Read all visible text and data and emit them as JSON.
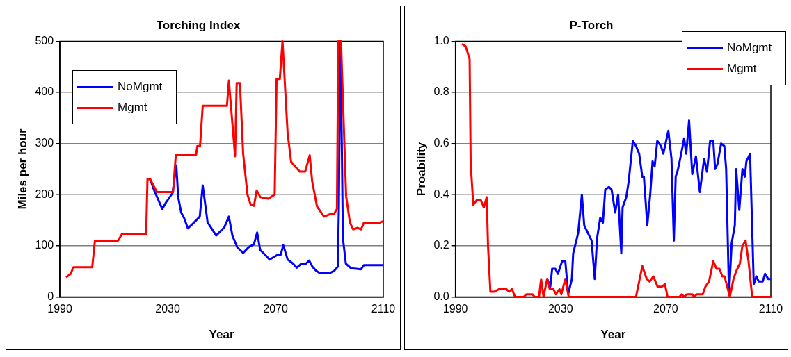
{
  "chart_data": [
    {
      "type": "line",
      "title": "Torching Index",
      "xlabel": "Year",
      "ylabel": "Miles per hour",
      "xlim": [
        1990,
        2110
      ],
      "xticks": [
        1990,
        2030,
        2070,
        2110
      ],
      "ylim": [
        0,
        500
      ],
      "yticks": [
        0,
        100,
        200,
        300,
        400,
        500
      ],
      "grid": "y",
      "legend": "top left",
      "marker": "none",
      "line_style": "solid",
      "series": [
        {
          "name": "NoMgmt",
          "color": "#0000ff",
          "x": [
            2023.5,
            2025,
            2028,
            2029.4,
            2031.8,
            2033.2,
            2033.9,
            2035,
            2036.1,
            2037.5,
            2039.5,
            2041.9,
            2043,
            2044.8,
            2048,
            2051,
            2052.7,
            2054,
            2055.8,
            2058,
            2060,
            2062,
            2063.2,
            2064.3,
            2066.2,
            2067.8,
            2070.7,
            2071.9,
            2072.9,
            2074.5,
            2076.5,
            2077.9,
            2079.6,
            2081.3,
            2082.5,
            2083.7,
            2085.1,
            2086.5,
            2090,
            2091.8,
            2093.1,
            2093.5,
            2094,
            2094.6,
            2095,
            2096.1,
            2098,
            2101.7,
            2102.8,
            2110
          ],
          "values": [
            230,
            208,
            172,
            185,
            203,
            257,
            195,
            165,
            154,
            134,
            144,
            157,
            218,
            146,
            120,
            136,
            157,
            120,
            97,
            86,
            97,
            103,
            126,
            92,
            82,
            73,
            82,
            82,
            101,
            73,
            65,
            57,
            65,
            65,
            71,
            59,
            51,
            46,
            46,
            51,
            59,
            170,
            500,
            300,
            115,
            65,
            56,
            54,
            62,
            62
          ]
        },
        {
          "name": "Mgmt",
          "color": "#ff0000",
          "x": [
            1992.3,
            1994,
            1995,
            2002,
            2003,
            2011.6,
            2013,
            2022,
            2022.5,
            2023.5,
            2026,
            2032,
            2033,
            2040.5,
            2041,
            2042,
            2043,
            2052,
            2052.7,
            2055,
            2055.6,
            2056.8,
            2058,
            2059.6,
            2060.8,
            2062,
            2063,
            2064.4,
            2067.3,
            2069.7,
            2070.4,
            2071.6,
            2072.6,
            2074.5,
            2075.8,
            2078,
            2079,
            2081,
            2082.7,
            2083.6,
            2085.4,
            2088,
            2090.4,
            2091.8,
            2092.8,
            2093.3,
            2094.3,
            2096.2,
            2097.6,
            2098.8,
            2100.5,
            2101.7,
            2102.8,
            2108.6,
            2110
          ],
          "values": [
            38,
            45,
            58,
            58,
            110,
            110,
            123,
            123,
            230,
            230,
            205,
            205,
            277,
            277,
            295,
            295,
            374,
            374,
            423,
            275,
            418,
            418,
            280,
            200,
            180,
            178,
            208,
            195,
            192,
            200,
            426,
            426,
            500,
            320,
            264,
            251,
            245,
            245,
            277,
            226,
            177,
            157,
            162,
            163,
            172,
            500,
            500,
            197,
            146,
            132,
            135,
            132,
            145,
            145,
            148
          ]
        }
      ]
    },
    {
      "type": "line",
      "title": "P-Torch",
      "xlabel": "Year",
      "ylabel": "Proability",
      "xlim": [
        1990,
        2110
      ],
      "xticks": [
        1990,
        2030,
        2070,
        2110
      ],
      "ylim": [
        0,
        1
      ],
      "yticks": [
        {
          "value": 0,
          "label": "0.0"
        },
        {
          "value": 0.2,
          "label": "0.2"
        },
        {
          "value": 0.4,
          "label": "0.4"
        },
        {
          "value": 0.6,
          "label": "0.6"
        },
        {
          "value": 0.8,
          "label": "0.8"
        },
        {
          "value": 1,
          "label": "1.0"
        }
      ],
      "grid": "y",
      "legend": "top right",
      "marker": "none",
      "line_style": "solid",
      "series": [
        {
          "name": "NoMgmt",
          "color": "#0000ff",
          "x": [
            2024.9,
            2026.1,
            2026.8,
            2028,
            2029,
            2030.6,
            2031.8,
            2032.9,
            2034.3,
            2034.8,
            2036.7,
            2038.1,
            2039,
            2040.4,
            2041.8,
            2043,
            2043.9,
            2045.1,
            2046.1,
            2047,
            2048.4,
            2049.4,
            2050.8,
            2051.9,
            2053.1,
            2053.6,
            2055,
            2055.9,
            2057.5,
            2058.7,
            2059.9,
            2061.1,
            2061.7,
            2063,
            2064.1,
            2065,
            2065.8,
            2066.8,
            2068.2,
            2069.1,
            2071,
            2072.2,
            2073.1,
            2073.8,
            2074.7,
            2075.9,
            2077,
            2077.8,
            2078.9,
            2080.1,
            2081.5,
            2083,
            2084.6,
            2085.7,
            2086.9,
            2088.1,
            2088.8,
            2089.7,
            2091.1,
            2092.3,
            2093,
            2094.1,
            2095.1,
            2096.3,
            2096.8,
            2098,
            2099.2,
            2100.1,
            2100.7,
            2102.1,
            2103.5,
            2104.5,
            2105.4,
            2106.9,
            2107.8,
            2109,
            2110
          ],
          "values": [
            0.07,
            0.04,
            0.11,
            0.11,
            0.09,
            0.14,
            0.14,
            0.01,
            0.07,
            0.17,
            0.25,
            0.4,
            0.28,
            0.25,
            0.22,
            0.07,
            0.23,
            0.31,
            0.29,
            0.42,
            0.43,
            0.42,
            0.33,
            0.4,
            0.17,
            0.35,
            0.39,
            0.45,
            0.61,
            0.59,
            0.56,
            0.47,
            0.47,
            0.28,
            0.4,
            0.53,
            0.51,
            0.61,
            0.59,
            0.56,
            0.65,
            0.54,
            0.22,
            0.47,
            0.5,
            0.56,
            0.62,
            0.56,
            0.69,
            0.48,
            0.55,
            0.41,
            0.54,
            0.49,
            0.61,
            0.61,
            0.5,
            0.52,
            0.6,
            0.59,
            0.5,
            0.01,
            0.21,
            0.28,
            0.5,
            0.34,
            0.5,
            0.47,
            0.53,
            0.56,
            0.05,
            0.08,
            0.06,
            0.06,
            0.09,
            0.07,
            0.07
          ]
        },
        {
          "name": "Mgmt",
          "color": "#ff0000",
          "x": [
            1992.5,
            1993.9,
            1995.4,
            1995.8,
            1996.8,
            1998.2,
            1999.6,
            2000.8,
            2001.9,
            2002.4,
            2003.3,
            2004.7,
            2006.6,
            2009.4,
            2010.4,
            2011.5,
            2012.7,
            2016,
            2017,
            2019.3,
            2020.2,
            2021.8,
            2022.6,
            2023.5,
            2024.9,
            2025.9,
            2027.3,
            2028.2,
            2029.6,
            2030.3,
            2031.8,
            2033.1,
            2058.7,
            2061.1,
            2062.8,
            2063.9,
            2065.3,
            2066.9,
            2068.6,
            2069.7,
            2070.7,
            2075.2,
            2076.1,
            2077,
            2078,
            2080.1,
            2080.8,
            2081.8,
            2084.1,
            2085.1,
            2086.5,
            2088.1,
            2089.3,
            2090.4,
            2091.6,
            2092.4,
            2094.4,
            2095.8,
            2096.8,
            2098.2,
            2099.2,
            2100.4,
            2101.5,
            2102.9,
            2110
          ],
          "values": [
            0.99,
            0.98,
            0.93,
            0.52,
            0.36,
            0.38,
            0.38,
            0.35,
            0.39,
            0.2,
            0.02,
            0.02,
            0.03,
            0.03,
            0.02,
            0.03,
            0,
            0,
            0.01,
            0.01,
            0,
            0,
            0.07,
            0,
            0.07,
            0.03,
            0.03,
            0.01,
            0.03,
            0.01,
            0.07,
            0,
            0,
            0.12,
            0.07,
            0.06,
            0.08,
            0.04,
            0.04,
            0.05,
            0,
            0,
            0.01,
            0,
            0.01,
            0.01,
            0,
            0.01,
            0.01,
            0.04,
            0.06,
            0.14,
            0.11,
            0.11,
            0.08,
            0.08,
            0,
            0.07,
            0.1,
            0.13,
            0.2,
            0.22,
            0.14,
            0,
            0
          ]
        }
      ]
    }
  ]
}
